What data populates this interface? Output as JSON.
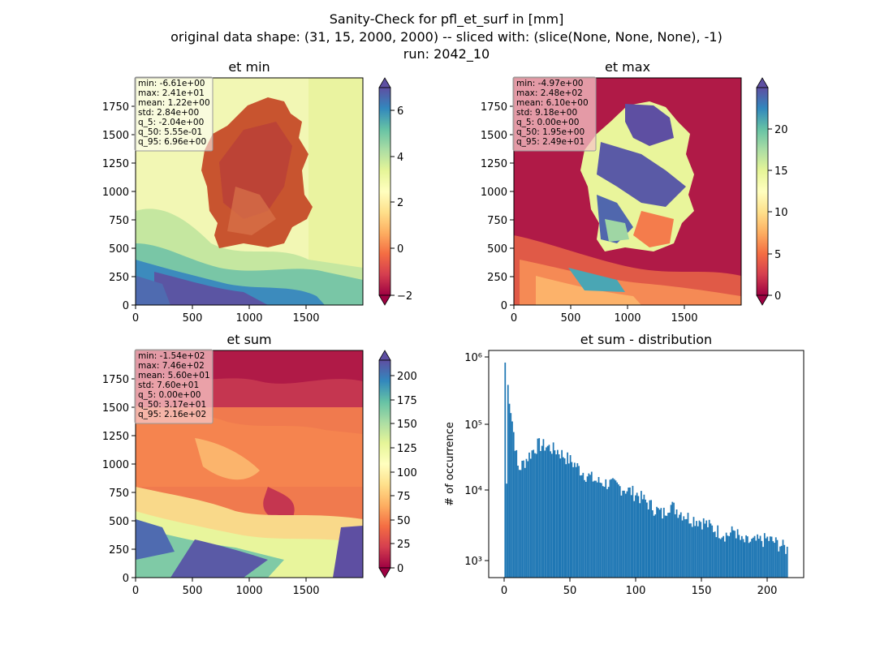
{
  "figure": {
    "title_lines": [
      "Sanity-Check for pfl_et_surf in [mm]",
      "original data shape: (31, 15, 2000, 2000) -- sliced with: (slice(None, None, None), -1)",
      "run: 2042_10"
    ]
  },
  "colormap": "Spectral",
  "colors": {
    "hist_bar": "#1f77b4",
    "box_fill": "#f5c6c6"
  },
  "chart_data": [
    {
      "type": "heatmap",
      "title": "et min",
      "xlim": [
        0,
        2000
      ],
      "ylim": [
        0,
        2000
      ],
      "xticks": [
        "0",
        "500",
        "1000",
        "1500"
      ],
      "yticks": [
        "0",
        "250",
        "500",
        "750",
        "1000",
        "1250",
        "1500",
        "1750"
      ],
      "colorbar": {
        "vmin": -2,
        "vmax": 7,
        "ticks": [
          "−2",
          "0",
          "2",
          "4",
          "6"
        ],
        "extend": "both"
      },
      "stats": [
        "min: -6.61e+00",
        "max: 2.41e+01",
        "mean: 1.22e+00",
        "std: 2.84e+00",
        "q_5: -2.04e+00",
        "q_50: 5.55e-01",
        "q_95: 6.96e+00"
      ]
    },
    {
      "type": "heatmap",
      "title": "et max",
      "xlim": [
        0,
        2000
      ],
      "ylim": [
        0,
        2000
      ],
      "xticks": [
        "0",
        "500",
        "1000",
        "1500"
      ],
      "yticks": [
        "0",
        "250",
        "500",
        "750",
        "1000",
        "1250",
        "1500",
        "1750"
      ],
      "colorbar": {
        "vmin": 0,
        "vmax": 24.9,
        "ticks": [
          "0",
          "5",
          "10",
          "15",
          "20"
        ],
        "extend": "both"
      },
      "stats": [
        "min: -4.97e+00",
        "max: 2.48e+02",
        "mean: 6.10e+00",
        "std: 9.18e+00",
        "q_5: 0.00e+00",
        "q_50: 1.95e+00",
        "q_95: 2.49e+01"
      ]
    },
    {
      "type": "heatmap",
      "title": "et sum",
      "xlim": [
        0,
        2000
      ],
      "ylim": [
        0,
        2000
      ],
      "xticks": [
        "0",
        "500",
        "1000",
        "1500"
      ],
      "yticks": [
        "0",
        "250",
        "500",
        "750",
        "1000",
        "1250",
        "1500",
        "1750"
      ],
      "colorbar": {
        "vmin": 0,
        "vmax": 216,
        "ticks": [
          "0",
          "25",
          "50",
          "75",
          "100",
          "125",
          "150",
          "175",
          "200"
        ],
        "extend": "both"
      },
      "stats": [
        "min: -1.54e+02",
        "max: 7.46e+02",
        "mean: 5.60e+01",
        "std: 7.60e+01",
        "q_5: 0.00e+00",
        "q_50: 3.17e+01",
        "q_95: 2.16e+02"
      ]
    },
    {
      "type": "bar",
      "title": "et sum - distribution",
      "ylabel": "# of occurrence",
      "yscale": "log",
      "xlim": [
        -12,
        228
      ],
      "ylim": [
        600,
        1200000
      ],
      "xticks": [
        "0",
        "50",
        "100",
        "150",
        "200"
      ],
      "yticks": [
        "10³",
        "10⁴",
        "10⁵",
        "10⁶"
      ],
      "bin_width": 1.08,
      "x": [
        0,
        10,
        20,
        25,
        30,
        40,
        50,
        60,
        70,
        80,
        90,
        100,
        110,
        120,
        125,
        130,
        140,
        150,
        160,
        170,
        175,
        180,
        190,
        200,
        210,
        216
      ],
      "values": [
        800000,
        22000,
        40000,
        52000,
        50000,
        42000,
        30000,
        20000,
        15000,
        14000,
        12000,
        10000,
        7000,
        5000,
        7000,
        6000,
        4500,
        4000,
        3000,
        2500,
        3000,
        2000,
        2000,
        2200,
        1800,
        1500
      ]
    }
  ]
}
